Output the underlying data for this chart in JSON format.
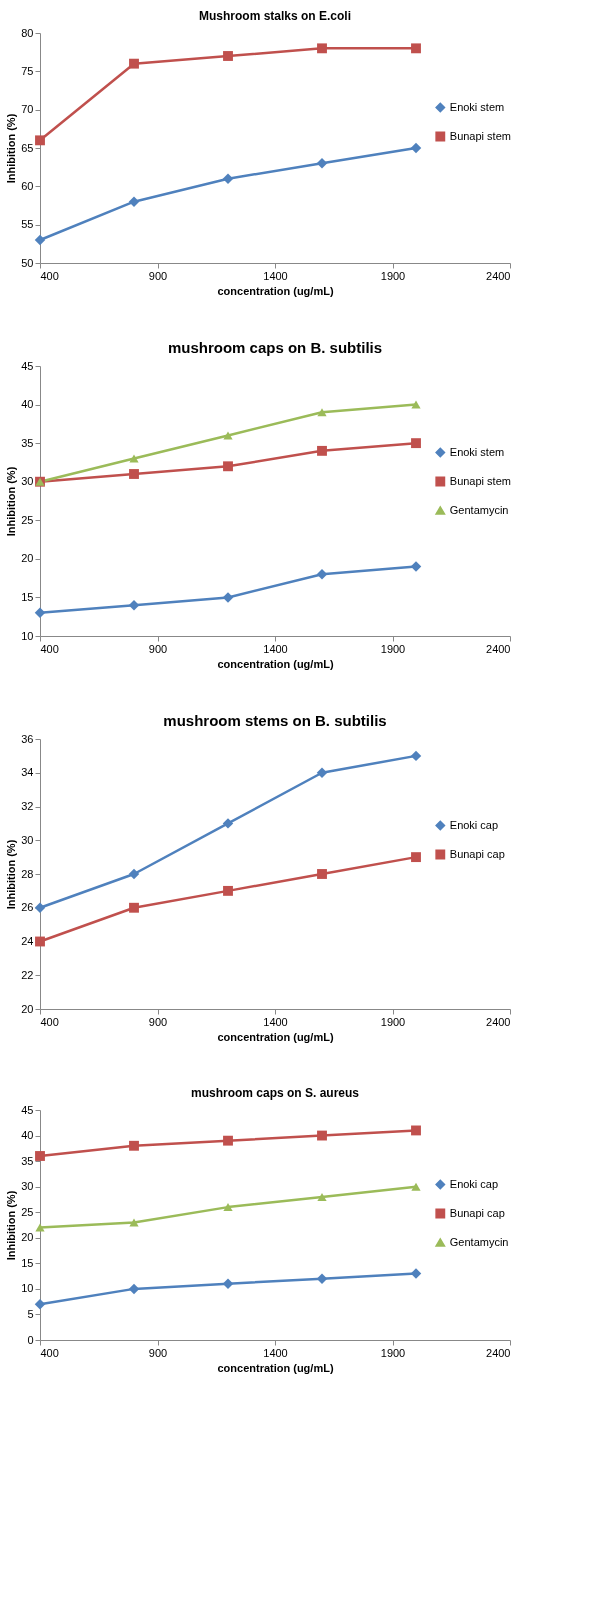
{
  "chart_data": [
    {
      "type": "line",
      "title": "Mushroom stalks on E.coli",
      "xlabel": "concentration (ug/mL)",
      "ylabel": "Inhibition (%)",
      "x": [
        400,
        800,
        1200,
        1600,
        2000
      ],
      "xlim": [
        400,
        2400
      ],
      "xticks": [
        400,
        900,
        1400,
        1900,
        2400
      ],
      "ylim": [
        50,
        80
      ],
      "yticks": [
        50,
        55,
        60,
        65,
        70,
        75,
        80
      ],
      "grid": false,
      "legend": "right",
      "series": [
        {
          "name": "Enoki stem",
          "color": "#4f81bd",
          "marker": "diamond",
          "values": [
            53,
            58,
            61,
            63,
            65
          ]
        },
        {
          "name": "Bunapi stem",
          "color": "#c0504d",
          "marker": "square",
          "values": [
            66,
            76,
            77,
            78,
            78
          ]
        }
      ]
    },
    {
      "type": "line",
      "title": "mushroom caps on B. subtilis",
      "xlabel": "concentration (ug/mL)",
      "ylabel": "Inhibition (%)",
      "x": [
        400,
        800,
        1200,
        1600,
        2000
      ],
      "xlim": [
        400,
        2400
      ],
      "xticks": [
        400,
        900,
        1400,
        1900,
        2400
      ],
      "ylim": [
        10,
        45
      ],
      "yticks": [
        10,
        15,
        20,
        25,
        30,
        35,
        40,
        45
      ],
      "grid": false,
      "legend": "right",
      "series": [
        {
          "name": "Enoki stem",
          "color": "#4f81bd",
          "marker": "diamond",
          "values": [
            13,
            14,
            15,
            18,
            19
          ]
        },
        {
          "name": "Bunapi stem",
          "color": "#c0504d",
          "marker": "square",
          "values": [
            30,
            31,
            32,
            34,
            35
          ]
        },
        {
          "name": "Gentamycin",
          "color": "#9bbb59",
          "marker": "triangle",
          "values": [
            30,
            33,
            36,
            39,
            40
          ]
        }
      ]
    },
    {
      "type": "line",
      "title": "mushroom stems on B. subtilis",
      "xlabel": "concentration (ug/mL)",
      "ylabel": "Inhibition (%)",
      "x": [
        400,
        800,
        1200,
        1600,
        2000
      ],
      "xlim": [
        400,
        2400
      ],
      "xticks": [
        400,
        900,
        1400,
        1900,
        2400
      ],
      "ylim": [
        20,
        36
      ],
      "yticks": [
        20,
        22,
        24,
        26,
        28,
        30,
        32,
        34,
        36
      ],
      "grid": false,
      "legend": "right",
      "series": [
        {
          "name": "Enoki cap",
          "color": "#4f81bd",
          "marker": "diamond",
          "values": [
            26,
            28,
            31,
            34,
            35
          ]
        },
        {
          "name": "Bunapi cap",
          "color": "#c0504d",
          "marker": "square",
          "values": [
            24,
            26,
            27,
            28,
            29
          ]
        }
      ]
    },
    {
      "type": "line",
      "title": "mushroom caps on S. aureus",
      "xlabel": "concentration (ug/mL)",
      "ylabel": "Inhibition (%)",
      "x": [
        400,
        800,
        1200,
        1600,
        2000
      ],
      "xlim": [
        400,
        2400
      ],
      "xticks": [
        400,
        900,
        1400,
        1900,
        2400
      ],
      "ylim": [
        0,
        45
      ],
      "yticks": [
        0,
        5,
        10,
        15,
        20,
        25,
        30,
        35,
        40,
        45
      ],
      "grid": false,
      "legend": "right",
      "series": [
        {
          "name": "Enoki cap",
          "color": "#4f81bd",
          "marker": "diamond",
          "values": [
            7,
            10,
            11,
            12,
            13
          ]
        },
        {
          "name": "Bunapi cap",
          "color": "#c0504d",
          "marker": "square",
          "values": [
            36,
            38,
            39,
            40,
            41
          ]
        },
        {
          "name": "Gentamycin",
          "color": "#9bbb59",
          "marker": "triangle",
          "values": [
            22,
            23,
            26,
            28,
            30
          ]
        }
      ]
    }
  ]
}
